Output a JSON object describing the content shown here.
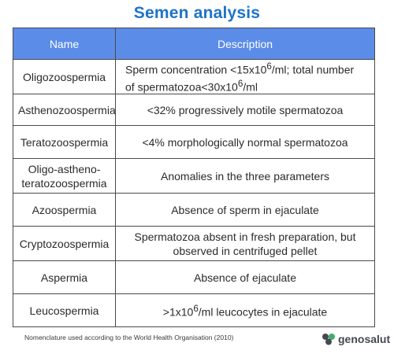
{
  "title": "Semen analysis",
  "table": {
    "headers": [
      "Name",
      "Description"
    ],
    "rows": [
      {
        "name": "Oligozoospermia",
        "desc_html": "Sperm concentration &lt;15x10<sup>6</sup>/ml; total number<br>of spermatozoa&lt;30x10<sup>6</sup>/ml",
        "align": "left"
      },
      {
        "name": "Asthenozoospermia",
        "desc_html": "&lt;32% progressively motile spermatozoa",
        "align": "center"
      },
      {
        "name": "Teratozoospermia",
        "desc_html": "&lt;4% morphologically normal spermatozoa",
        "align": "center"
      },
      {
        "name": "Oligo-astheno-<br>teratozoospermia",
        "desc_html": "Anomalies in the three parameters",
        "align": "center"
      },
      {
        "name": "Azoospermia",
        "desc_html": "Absence of sperm in ejaculate",
        "align": "center"
      },
      {
        "name": "Cryptozoospermia",
        "desc_html": "Spermatozoa absent in fresh preparation, but<br>observed in centrifuged pellet",
        "align": "center"
      },
      {
        "name": "Aspermia",
        "desc_html": "Absence of ejaculate",
        "align": "center"
      },
      {
        "name": "Leucospermia",
        "desc_html": "&gt;1x10<sup>6</sup>/ml leucocytes in ejaculate",
        "align": "center"
      }
    ]
  },
  "footnote": "Nomenclature used according to the World Health Organisation (2010)",
  "brand": {
    "name": "genosalut",
    "colors": {
      "title": "#1e73c9",
      "header": "#5b8ce8",
      "logo_dark": "#444a52",
      "logo_green": "#3fae6a"
    }
  }
}
